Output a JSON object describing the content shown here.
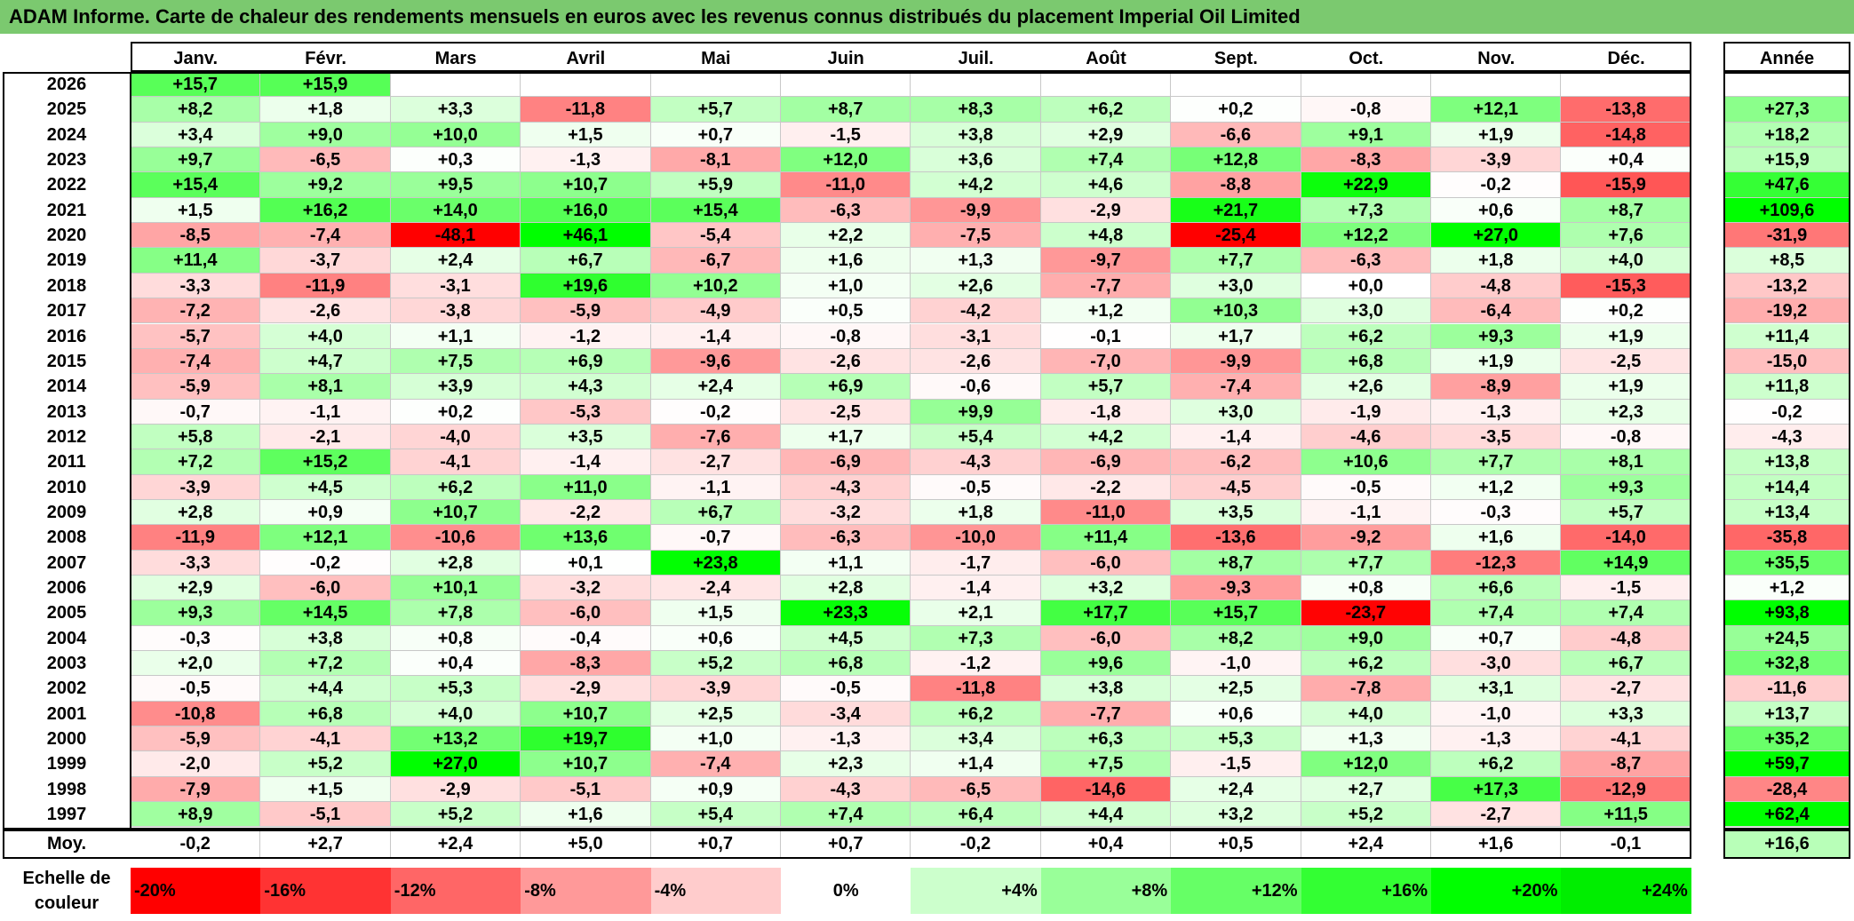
{
  "title": "ADAM Informe. Carte de chaleur des rendements mensuels en euros avec les revenus connus distribués du placement Imperial Oil Limited",
  "chart_data": {
    "type": "heatmap",
    "title": "ADAM Informe. Carte de chaleur des rendements mensuels en euros avec les revenus connus distribués du placement Imperial Oil Limited",
    "columns": [
      "Janv.",
      "Févr.",
      "Mars",
      "Avril",
      "Mai",
      "Juin",
      "Juil.",
      "Août",
      "Sept.",
      "Oct.",
      "Nov.",
      "Déc."
    ],
    "year_header": "Année",
    "rows": [
      {
        "year": "2026",
        "values": [
          "+15,7",
          "+15,9",
          "",
          "",
          "",
          "",
          "",
          "",
          "",
          "",
          "",
          ""
        ],
        "annual": ""
      },
      {
        "year": "2025",
        "values": [
          "+8,2",
          "+1,8",
          "+3,3",
          "-11,8",
          "+5,7",
          "+8,7",
          "+8,3",
          "+6,2",
          "+0,2",
          "-0,8",
          "+12,1",
          "-13,8"
        ],
        "annual": "+27,3"
      },
      {
        "year": "2024",
        "values": [
          "+3,4",
          "+9,0",
          "+10,0",
          "+1,5",
          "+0,7",
          "-1,5",
          "+3,8",
          "+2,9",
          "-6,6",
          "+9,1",
          "+1,9",
          "-14,8"
        ],
        "annual": "+18,2"
      },
      {
        "year": "2023",
        "values": [
          "+9,7",
          "-6,5",
          "+0,3",
          "-1,3",
          "-8,1",
          "+12,0",
          "+3,6",
          "+7,4",
          "+12,8",
          "-8,3",
          "-3,9",
          "+0,4"
        ],
        "annual": "+15,9"
      },
      {
        "year": "2022",
        "values": [
          "+15,4",
          "+9,2",
          "+9,5",
          "+10,7",
          "+5,9",
          "-11,0",
          "+4,2",
          "+4,6",
          "-8,8",
          "+22,9",
          "-0,2",
          "-15,9"
        ],
        "annual": "+47,6"
      },
      {
        "year": "2021",
        "values": [
          "+1,5",
          "+16,2",
          "+14,0",
          "+16,0",
          "+15,4",
          "-6,3",
          "-9,9",
          "-2,9",
          "+21,7",
          "+7,3",
          "+0,6",
          "+8,7"
        ],
        "annual": "+109,6"
      },
      {
        "year": "2020",
        "values": [
          "-8,5",
          "-7,4",
          "-48,1",
          "+46,1",
          "-5,4",
          "+2,2",
          "-7,5",
          "+4,8",
          "-25,4",
          "+12,2",
          "+27,0",
          "+7,6"
        ],
        "annual": "-31,9"
      },
      {
        "year": "2019",
        "values": [
          "+11,4",
          "-3,7",
          "+2,4",
          "+6,7",
          "-6,7",
          "+1,6",
          "+1,3",
          "-9,7",
          "+7,7",
          "-6,3",
          "+1,8",
          "+4,0"
        ],
        "annual": "+8,5"
      },
      {
        "year": "2018",
        "values": [
          "-3,3",
          "-11,9",
          "-3,1",
          "+19,6",
          "+10,2",
          "+1,0",
          "+2,6",
          "-7,7",
          "+3,0",
          "+0,0",
          "-4,8",
          "-15,3"
        ],
        "annual": "-13,2"
      },
      {
        "year": "2017",
        "values": [
          "-7,2",
          "-2,6",
          "-3,8",
          "-5,9",
          "-4,9",
          "+0,5",
          "-4,2",
          "+1,2",
          "+10,3",
          "+3,0",
          "-6,4",
          "+0,2"
        ],
        "annual": "-19,2"
      },
      {
        "year": "2016",
        "values": [
          "-5,7",
          "+4,0",
          "+1,1",
          "-1,2",
          "-1,4",
          "-0,8",
          "-3,1",
          "-0,1",
          "+1,7",
          "+6,2",
          "+9,3",
          "+1,9"
        ],
        "annual": "+11,4"
      },
      {
        "year": "2015",
        "values": [
          "-7,4",
          "+4,7",
          "+7,5",
          "+6,9",
          "-9,6",
          "-2,6",
          "-2,6",
          "-7,0",
          "-9,9",
          "+6,8",
          "+1,9",
          "-2,5"
        ],
        "annual": "-15,0"
      },
      {
        "year": "2014",
        "values": [
          "-5,9",
          "+8,1",
          "+3,9",
          "+4,3",
          "+2,4",
          "+6,9",
          "-0,6",
          "+5,7",
          "-7,4",
          "+2,6",
          "-8,9",
          "+1,9"
        ],
        "annual": "+11,8"
      },
      {
        "year": "2013",
        "values": [
          "-0,7",
          "-1,1",
          "+0,2",
          "-5,3",
          "-0,2",
          "-2,5",
          "+9,9",
          "-1,8",
          "+3,0",
          "-1,9",
          "-1,3",
          "+2,3"
        ],
        "annual": "-0,2"
      },
      {
        "year": "2012",
        "values": [
          "+5,8",
          "-2,1",
          "-4,0",
          "+3,5",
          "-7,6",
          "+1,7",
          "+5,4",
          "+4,2",
          "-1,4",
          "-4,6",
          "-3,5",
          "-0,8"
        ],
        "annual": "-4,3"
      },
      {
        "year": "2011",
        "values": [
          "+7,2",
          "+15,2",
          "-4,1",
          "-1,4",
          "-2,7",
          "-6,9",
          "-4,3",
          "-6,9",
          "-6,2",
          "+10,6",
          "+7,7",
          "+8,1"
        ],
        "annual": "+13,8"
      },
      {
        "year": "2010",
        "values": [
          "-3,9",
          "+4,5",
          "+6,2",
          "+11,0",
          "-1,1",
          "-4,3",
          "-0,5",
          "-2,2",
          "-4,5",
          "-0,5",
          "+1,2",
          "+9,3"
        ],
        "annual": "+14,4"
      },
      {
        "year": "2009",
        "values": [
          "+2,8",
          "+0,9",
          "+10,7",
          "-2,2",
          "+6,7",
          "-3,2",
          "+1,8",
          "-11,0",
          "+3,5",
          "-1,1",
          "-0,3",
          "+5,7"
        ],
        "annual": "+13,4"
      },
      {
        "year": "2008",
        "values": [
          "-11,9",
          "+12,1",
          "-10,6",
          "+13,6",
          "-0,7",
          "-6,3",
          "-10,0",
          "+11,4",
          "-13,6",
          "-9,2",
          "+1,6",
          "-14,0"
        ],
        "annual": "-35,8"
      },
      {
        "year": "2007",
        "values": [
          "-3,3",
          "-0,2",
          "+2,8",
          "+0,1",
          "+23,8",
          "+1,1",
          "-1,7",
          "-6,0",
          "+8,7",
          "+7,7",
          "-12,3",
          "+14,9"
        ],
        "annual": "+35,5"
      },
      {
        "year": "2006",
        "values": [
          "+2,9",
          "-6,0",
          "+10,1",
          "-3,2",
          "-2,4",
          "+2,8",
          "-1,4",
          "+3,2",
          "-9,3",
          "+0,8",
          "+6,6",
          "-1,5"
        ],
        "annual": "+1,2"
      },
      {
        "year": "2005",
        "values": [
          "+9,3",
          "+14,5",
          "+7,8",
          "-6,0",
          "+1,5",
          "+23,3",
          "+2,1",
          "+17,7",
          "+15,7",
          "-23,7",
          "+7,4",
          "+7,4"
        ],
        "annual": "+93,8"
      },
      {
        "year": "2004",
        "values": [
          "-0,3",
          "+3,8",
          "+0,8",
          "-0,4",
          "+0,6",
          "+4,5",
          "+7,3",
          "-6,0",
          "+8,2",
          "+9,0",
          "+0,7",
          "-4,8"
        ],
        "annual": "+24,5"
      },
      {
        "year": "2003",
        "values": [
          "+2,0",
          "+7,2",
          "+0,4",
          "-8,3",
          "+5,2",
          "+6,8",
          "-1,2",
          "+9,6",
          "-1,0",
          "+6,2",
          "-3,0",
          "+6,7"
        ],
        "annual": "+32,8"
      },
      {
        "year": "2002",
        "values": [
          "-0,5",
          "+4,4",
          "+5,3",
          "-2,9",
          "-3,9",
          "-0,5",
          "-11,8",
          "+3,8",
          "+2,5",
          "-7,8",
          "+3,1",
          "-2,7"
        ],
        "annual": "-11,6"
      },
      {
        "year": "2001",
        "values": [
          "-10,8",
          "+6,8",
          "+4,0",
          "+10,7",
          "+2,5",
          "-3,4",
          "+6,2",
          "-7,7",
          "+0,6",
          "+4,0",
          "-1,0",
          "+3,3"
        ],
        "annual": "+13,7"
      },
      {
        "year": "2000",
        "values": [
          "-5,9",
          "-4,1",
          "+13,2",
          "+19,7",
          "+1,0",
          "-1,3",
          "+3,4",
          "+6,3",
          "+5,3",
          "+1,3",
          "-1,3",
          "-4,1"
        ],
        "annual": "+35,2"
      },
      {
        "year": "1999",
        "values": [
          "-2,0",
          "+5,2",
          "+27,0",
          "+10,7",
          "-7,4",
          "+2,3",
          "+1,4",
          "+7,5",
          "-1,5",
          "+12,0",
          "+6,2",
          "-8,7"
        ],
        "annual": "+59,7"
      },
      {
        "year": "1998",
        "values": [
          "-7,9",
          "+1,5",
          "-2,9",
          "-5,1",
          "+0,9",
          "-4,3",
          "-6,5",
          "-14,6",
          "+2,4",
          "+2,7",
          "+17,3",
          "-12,9"
        ],
        "annual": "-28,4"
      },
      {
        "year": "1997",
        "values": [
          "+8,9",
          "-5,1",
          "+5,2",
          "+1,6",
          "+5,4",
          "+7,4",
          "+6,4",
          "+4,4",
          "+3,2",
          "+5,2",
          "-2,7",
          "+11,5"
        ],
        "annual": "+62,4"
      }
    ],
    "average": {
      "label": "Moy.",
      "values": [
        "-0,2",
        "+2,7",
        "+2,4",
        "+5,0",
        "+0,7",
        "+0,7",
        "-0,2",
        "+0,4",
        "+0,5",
        "+2,4",
        "+1,6",
        "-0,1"
      ],
      "annual": "+16,6"
    },
    "color_scale": {
      "label": "Echelle de couleur",
      "stops": [
        {
          "label": "-20%",
          "color": "#ff0000"
        },
        {
          "label": "-16%",
          "color": "#ff3333"
        },
        {
          "label": "-12%",
          "color": "#ff6666"
        },
        {
          "label": "-8%",
          "color": "#ff9999"
        },
        {
          "label": "-4%",
          "color": "#ffcccc"
        },
        {
          "label": "0%",
          "color": "#ffffff"
        },
        {
          "label": "+4%",
          "color": "#ccffcc"
        },
        {
          "label": "+8%",
          "color": "#99ff99"
        },
        {
          "label": "+12%",
          "color": "#66ff66"
        },
        {
          "label": "+16%",
          "color": "#33ff33"
        },
        {
          "label": "+20%",
          "color": "#00ff00"
        },
        {
          "label": "+24%",
          "color": "#00ee00"
        }
      ]
    }
  }
}
